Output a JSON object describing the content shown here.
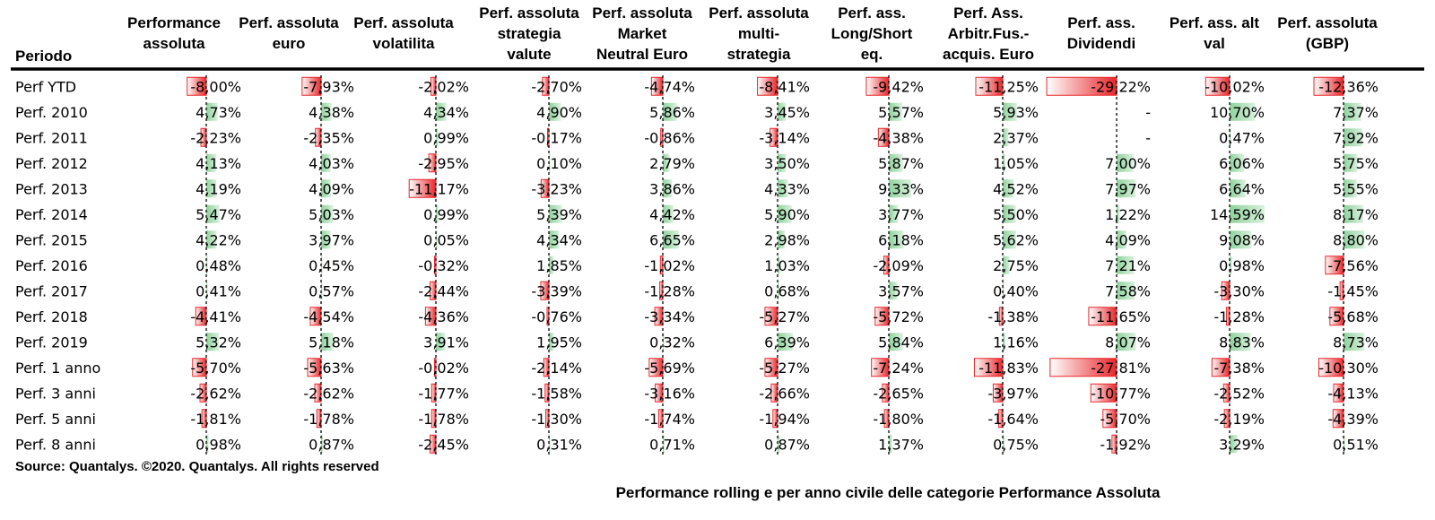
{
  "chart_data": {
    "type": "table",
    "title": "",
    "row_header": "Periodo",
    "columns": [
      "Performance assoluta",
      "Perf. assoluta euro",
      "Perf. assoluta volatilita",
      "Perf. assoluta strategia valute",
      "Perf. assoluta Market Neutral Euro",
      "Perf. assoluta multi-strategia",
      "Perf. ass. Long/Short eq.",
      "Perf. Ass. Arbitr.Fus.-acquis. Euro",
      "Perf. ass. Dividendi",
      "Perf. ass. alt val",
      "Perf. assoluta (GBP)"
    ],
    "column_header_lines": [
      [
        "Performance",
        "assoluta"
      ],
      [
        "Perf. assoluta",
        "euro"
      ],
      [
        "Perf. assoluta",
        "volatilita"
      ],
      [
        "Perf. assoluta",
        "strategia",
        "valute"
      ],
      [
        "Perf. assoluta",
        "Market",
        "Neutral Euro"
      ],
      [
        "Perf. assoluta",
        "multi-",
        "strategia"
      ],
      [
        "Perf. ass.",
        "Long/Short",
        "eq."
      ],
      [
        "Perf. Ass.",
        "Arbitr.Fus.-",
        "acquis. Euro"
      ],
      [
        "Perf. ass.",
        "Dividendi"
      ],
      [
        "Perf. ass. alt",
        "val"
      ],
      [
        "Perf. assoluta",
        "(GBP)"
      ]
    ],
    "rows": [
      {
        "label": "Perf YTD",
        "values": [
          -8.0,
          -7.93,
          -2.02,
          -2.7,
          -4.74,
          -8.41,
          -9.42,
          -11.25,
          -29.22,
          -10.02,
          -12.36
        ]
      },
      {
        "label": "Perf. 2010",
        "values": [
          4.73,
          4.38,
          4.34,
          4.9,
          5.86,
          3.45,
          5.57,
          5.93,
          null,
          10.7,
          7.37
        ]
      },
      {
        "label": "Perf. 2011",
        "values": [
          -2.23,
          -2.35,
          0.99,
          -0.17,
          -0.86,
          -3.14,
          -4.38,
          2.37,
          null,
          0.47,
          7.92
        ]
      },
      {
        "label": "Perf. 2012",
        "values": [
          4.13,
          4.03,
          -2.95,
          0.1,
          2.79,
          3.5,
          5.87,
          1.05,
          7.0,
          6.06,
          5.75
        ]
      },
      {
        "label": "Perf. 2013",
        "values": [
          4.19,
          4.09,
          -11.17,
          -3.23,
          3.86,
          4.33,
          9.33,
          4.52,
          7.97,
          6.64,
          5.55
        ]
      },
      {
        "label": "Perf. 2014",
        "values": [
          5.47,
          5.03,
          0.99,
          5.39,
          4.42,
          5.9,
          3.77,
          5.5,
          1.22,
          14.59,
          8.17
        ]
      },
      {
        "label": "Perf. 2015",
        "values": [
          4.22,
          3.97,
          0.05,
          4.34,
          6.65,
          2.98,
          6.18,
          5.62,
          4.09,
          9.08,
          8.8
        ]
      },
      {
        "label": "Perf. 2016",
        "values": [
          0.48,
          0.45,
          -0.32,
          1.85,
          -1.02,
          1.03,
          -2.09,
          2.75,
          7.21,
          0.98,
          -7.56
        ]
      },
      {
        "label": "Perf. 2017",
        "values": [
          0.41,
          0.57,
          -2.44,
          -3.39,
          -1.28,
          0.68,
          3.57,
          0.4,
          7.58,
          -3.3,
          -1.45
        ]
      },
      {
        "label": "Perf. 2018",
        "values": [
          -4.41,
          -4.54,
          -4.36,
          -0.76,
          -3.34,
          -5.27,
          -5.72,
          -1.38,
          -11.65,
          -1.28,
          -5.68
        ]
      },
      {
        "label": "Perf. 2019",
        "values": [
          5.32,
          5.18,
          3.91,
          1.95,
          0.32,
          6.39,
          5.84,
          1.16,
          8.07,
          8.83,
          8.73
        ]
      },
      {
        "label": "Perf. 1 anno",
        "values": [
          -5.7,
          -5.63,
          -0.02,
          -2.14,
          -5.69,
          -5.27,
          -7.24,
          -11.83,
          -27.81,
          -7.38,
          -10.3
        ]
      },
      {
        "label": "Perf. 3 anni",
        "values": [
          -2.62,
          -2.62,
          -1.77,
          -1.58,
          -3.16,
          -2.66,
          -2.65,
          -3.97,
          -10.77,
          -2.52,
          -4.13
        ]
      },
      {
        "label": "Perf. 5 anni",
        "values": [
          -1.81,
          -1.78,
          -1.78,
          -1.3,
          -1.74,
          -1.94,
          -1.8,
          -1.64,
          -5.7,
          -2.19,
          -4.39
        ]
      },
      {
        "label": "Perf. 8 anni",
        "values": [
          0.98,
          0.87,
          -2.45,
          0.31,
          0.71,
          0.87,
          1.37,
          0.75,
          -1.92,
          3.29,
          0.51
        ]
      }
    ],
    "missing_value_text": "-",
    "colors": {
      "negative": "#e8262a",
      "positive": "#a6dcb0",
      "header_rule": "#000000"
    }
  },
  "footer": {
    "source": "Source: Quantalys. ©2020. Quantalys. All rights reserved",
    "caption": "Performance rolling e per anno civile delle categorie Performance Assoluta"
  }
}
